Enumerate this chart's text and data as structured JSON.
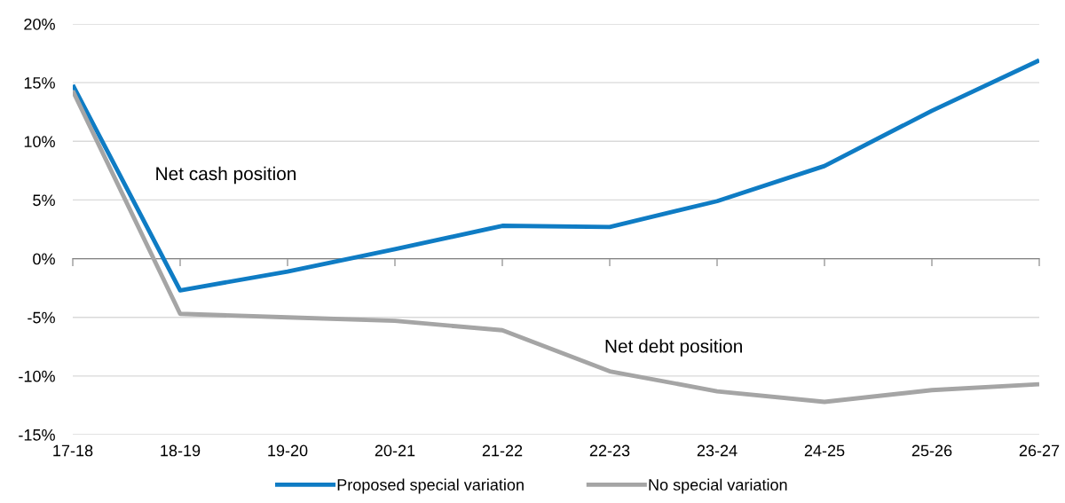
{
  "chart_data": {
    "type": "line",
    "categories": [
      "17-18",
      "18-19",
      "19-20",
      "20-21",
      "21-22",
      "22-23",
      "23-24",
      "24-25",
      "25-26",
      "26-27"
    ],
    "series": [
      {
        "name": "Proposed special variation",
        "color": "#0f7cc4",
        "values": [
          14.8,
          -2.7,
          -1.1,
          0.8,
          2.8,
          2.7,
          4.9,
          7.9,
          12.6,
          16.9
        ]
      },
      {
        "name": "No special variation",
        "color": "#a5a5a5",
        "values": [
          14.3,
          -4.7,
          -5.0,
          -5.3,
          -6.1,
          -9.6,
          -11.3,
          -12.2,
          -11.2,
          -10.7
        ]
      }
    ],
    "ylim": [
      -15,
      20
    ],
    "yticks": [
      {
        "value": -15,
        "label": "-15%"
      },
      {
        "value": -10,
        "label": "-10%"
      },
      {
        "value": -5,
        "label": "-5%"
      },
      {
        "value": 0,
        "label": "0%"
      },
      {
        "value": 5,
        "label": "5%"
      },
      {
        "value": 10,
        "label": "10%"
      },
      {
        "value": 15,
        "label": "15%"
      },
      {
        "value": 20,
        "label": "20%"
      }
    ],
    "grid": "y",
    "legend": "bottom",
    "marker": "none",
    "line_style": "solid",
    "annotations": [
      "Net cash position",
      "Net debt position"
    ]
  }
}
